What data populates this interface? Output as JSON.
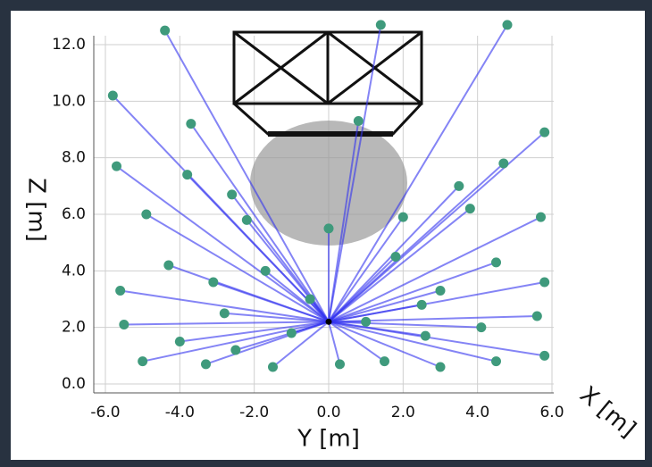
{
  "chart_data": {
    "type": "scatter",
    "xlabel": "Y [m]",
    "ylabel": "Z [m]",
    "zlabel": "X [m]",
    "xlim": [
      -6.0,
      6.0
    ],
    "ylim": [
      0,
      12.0
    ],
    "xticks": [
      {
        "value": -6,
        "label": "-6.0"
      },
      {
        "value": -4,
        "label": "-4.0"
      },
      {
        "value": -2,
        "label": "-2.0"
      },
      {
        "value": 0,
        "label": "0.0"
      },
      {
        "value": 2,
        "label": "2.0"
      },
      {
        "value": 4,
        "label": "4.0"
      },
      {
        "value": 6,
        "label": "6.0"
      }
    ],
    "yticks": [
      {
        "value": 0,
        "label": "0.0"
      },
      {
        "value": 2,
        "label": "2.0"
      },
      {
        "value": 4,
        "label": "4.0"
      },
      {
        "value": 6,
        "label": "6.0"
      },
      {
        "value": 8,
        "label": "8.0"
      },
      {
        "value": 10,
        "label": "10.0"
      },
      {
        "value": 12,
        "label": "12.0"
      }
    ],
    "grid": true,
    "source": {
      "x": 0,
      "y": 2.2
    },
    "ray_color": "#3434f0",
    "color": "#3f9a7c",
    "x": [
      -4.4,
      -5.8,
      -3.7,
      -5.7,
      -3.8,
      -4.9,
      -2.6,
      -5.6,
      -4.3,
      -3.1,
      -1.7,
      -5.5,
      -4.0,
      -2.5,
      -1.0,
      -5.0,
      -3.3,
      -1.5,
      0.3,
      1.5,
      3.0,
      4.5,
      5.8,
      5.6,
      4.1,
      2.6,
      1.0,
      5.8,
      4.5,
      3.0,
      1.8,
      5.7,
      3.8,
      5.8,
      4.7,
      3.5,
      4.8,
      1.4,
      0.8,
      -2.2,
      0.0,
      2.0,
      -0.5,
      2.5,
      -2.8
    ],
    "values": [
      12.5,
      10.2,
      9.2,
      7.7,
      7.4,
      6.0,
      6.7,
      3.3,
      4.2,
      3.6,
      4.0,
      2.1,
      1.5,
      1.2,
      1.8,
      0.8,
      0.7,
      0.6,
      0.7,
      0.8,
      0.6,
      0.8,
      1.0,
      2.4,
      2.0,
      1.7,
      2.2,
      3.6,
      4.3,
      3.3,
      4.5,
      5.9,
      6.2,
      8.9,
      7.8,
      7.0,
      12.7,
      12.7,
      9.3,
      5.8,
      5.5,
      5.9,
      3.0,
      2.8,
      2.5
    ]
  }
}
